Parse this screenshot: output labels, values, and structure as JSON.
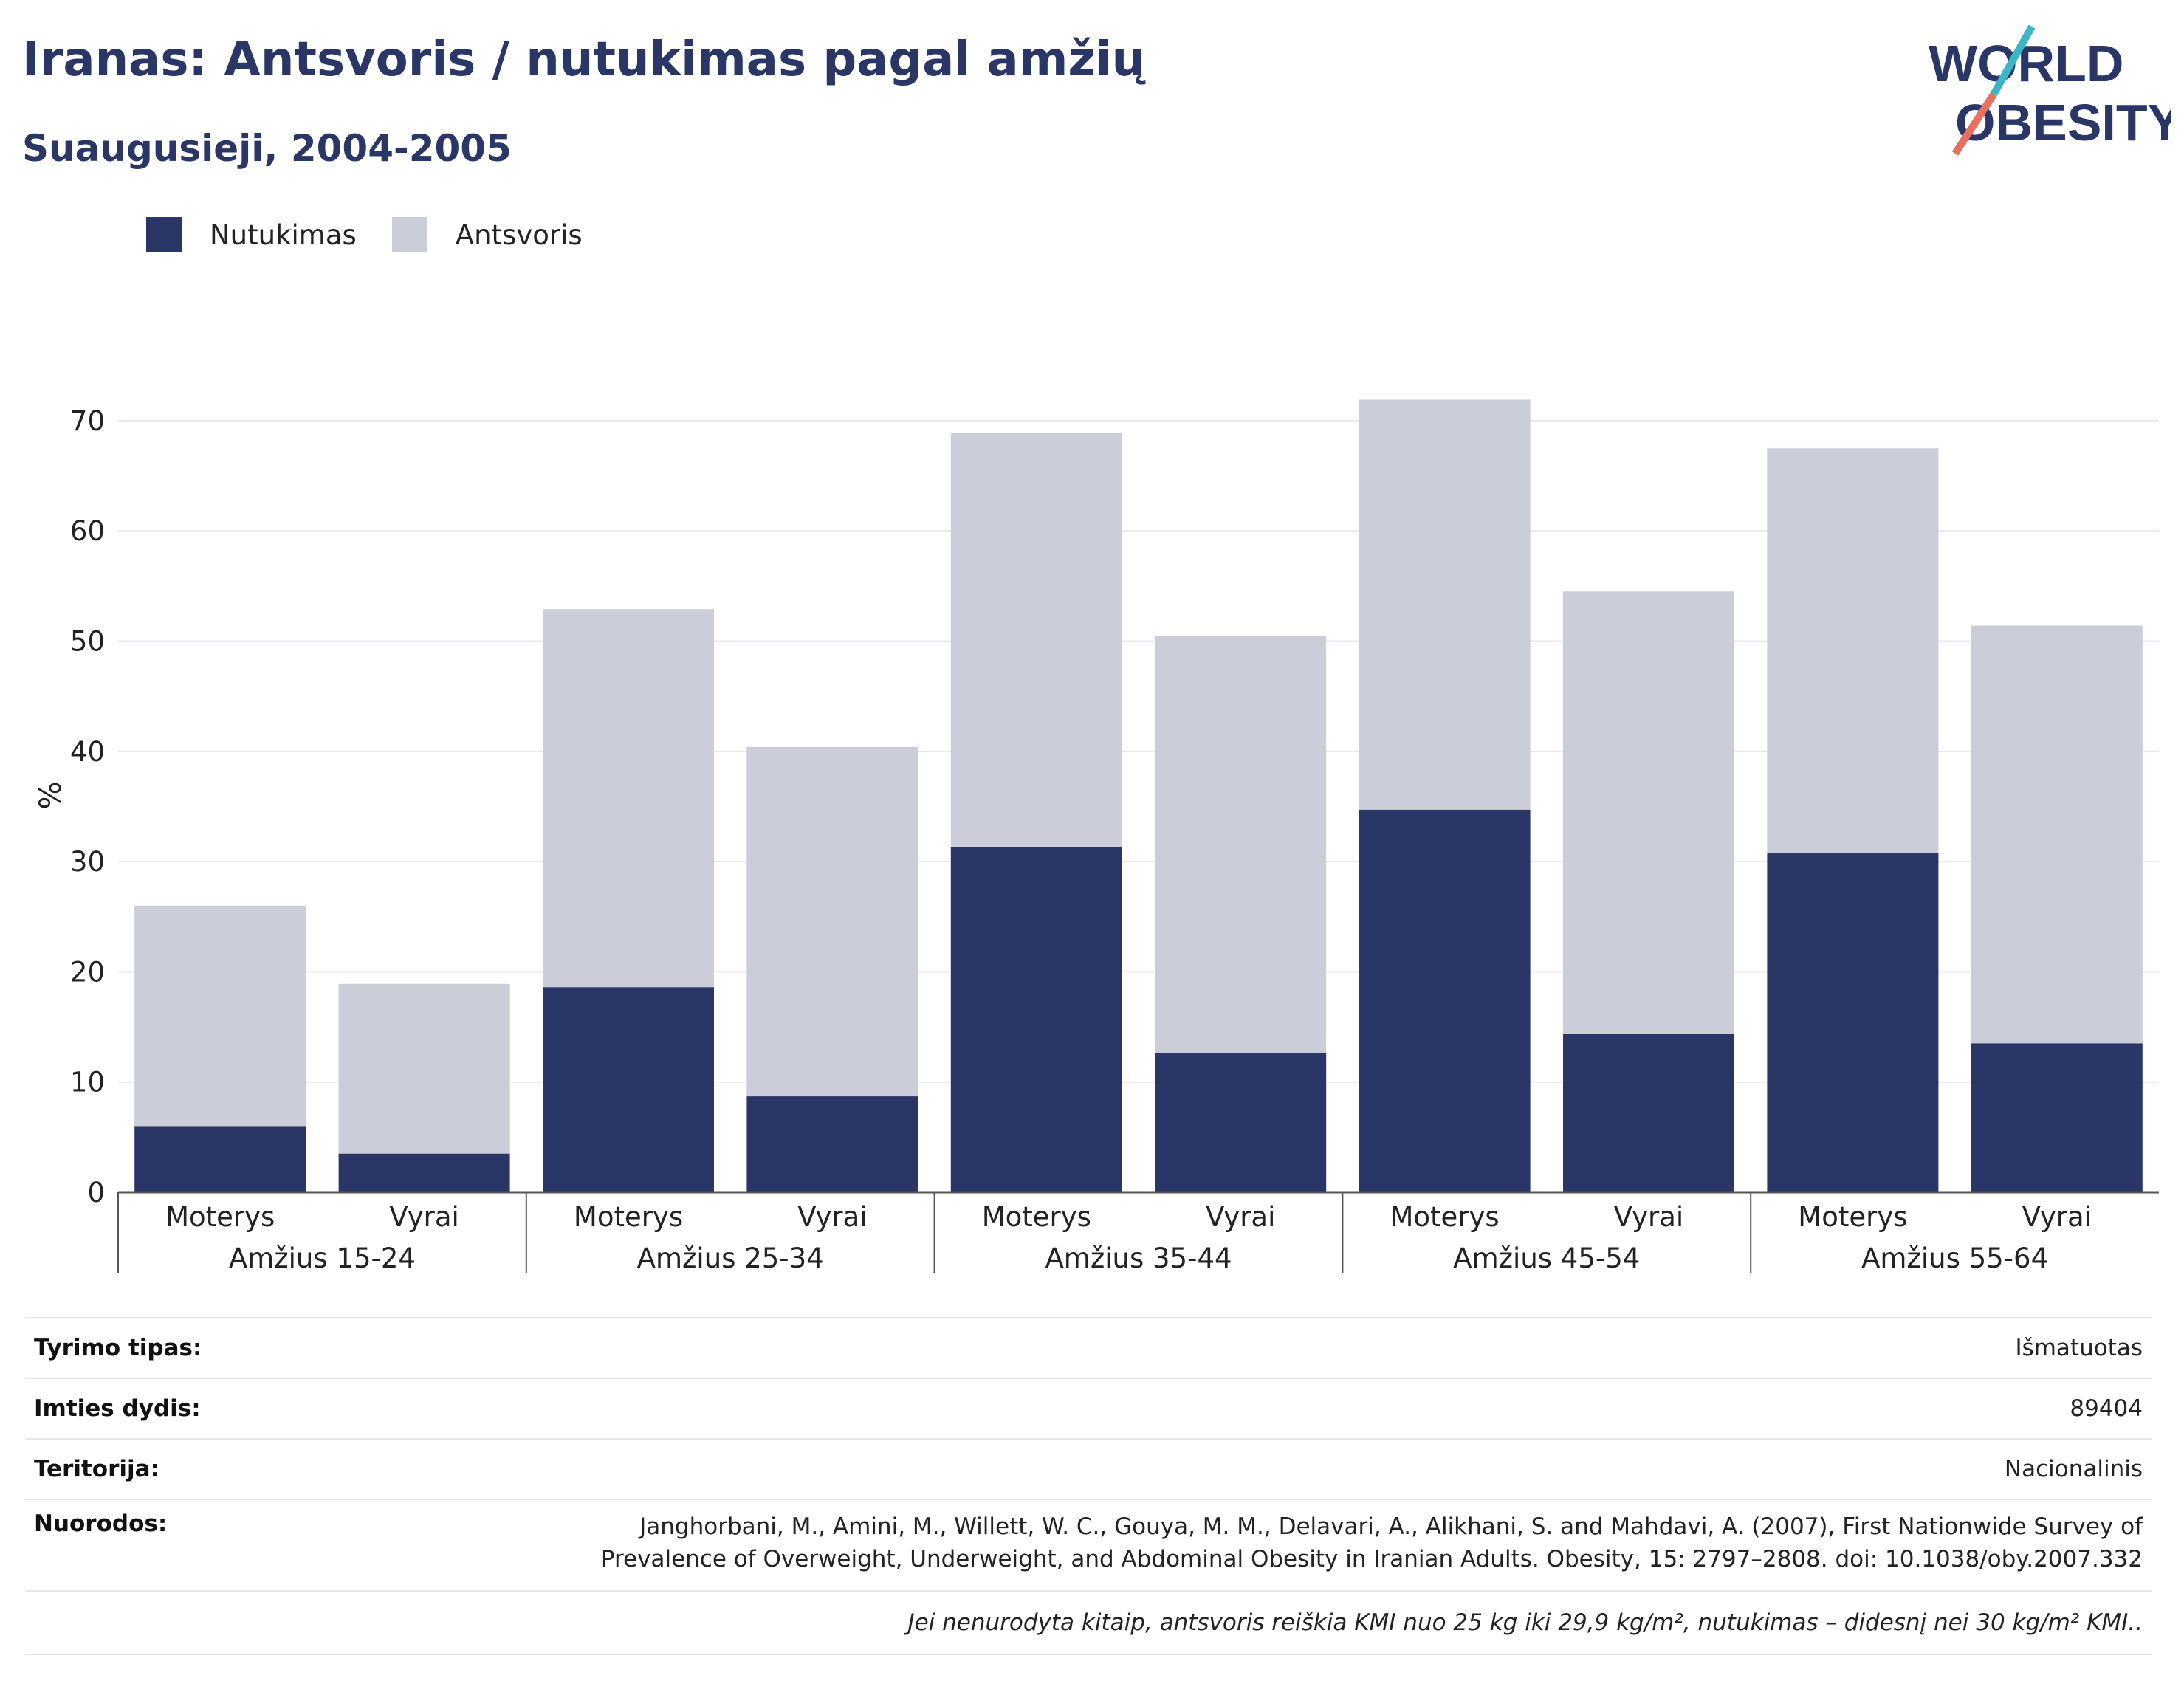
{
  "header": {
    "title": "Iranas: Antsvoris / nutukimas pagal amžių",
    "subtitle": "Suaugusieji, 2004-2005"
  },
  "logo": {
    "line1": "WORLD",
    "line2": "OBESITY",
    "accent_colors": [
      "#3bb6c4",
      "#e8705f"
    ]
  },
  "colors": {
    "obesity": "#2a3766",
    "overweight": "#cbcdd9",
    "text": "#2a3766"
  },
  "chart_data": {
    "type": "bar",
    "stacked": true,
    "ylabel": "%",
    "ylim": [
      0,
      72
    ],
    "yticks": [
      0,
      10,
      20,
      30,
      40,
      50,
      60,
      70
    ],
    "grid": true,
    "legend_position": "top-left",
    "groups": [
      "Amžius 15-24",
      "Amžius 25-34",
      "Amžius 35-44",
      "Amžius 45-54",
      "Amžius 55-64"
    ],
    "subcategories": [
      "Moterys",
      "Vyrai"
    ],
    "series": [
      {
        "name": "Nutukimas",
        "values": [
          6.0,
          3.5,
          18.6,
          8.7,
          31.3,
          12.6,
          34.7,
          14.4,
          30.8,
          13.5
        ]
      },
      {
        "name": "Antsvoris",
        "values": [
          20.0,
          15.4,
          34.3,
          31.7,
          37.6,
          37.9,
          37.2,
          40.1,
          36.7,
          37.9
        ]
      }
    ]
  },
  "info": {
    "rows": [
      {
        "key": "Tyrimo tipas:",
        "value": "Išmatuotas"
      },
      {
        "key": "Imties dydis:",
        "value": "89404"
      },
      {
        "key": "Teritorija:",
        "value": "Nacionalinis"
      },
      {
        "key": "Nuorodos:",
        "value_lines": [
          "Janghorbani, M., Amini, M., Willett, W. C., Gouya, M. M., Delavari, A., Alikhani, S. and Mahdavi, A. (2007), First Nationwide Survey of",
          "Prevalence of Overweight, Underweight, and Abdominal Obesity in Iranian Adults. Obesity, 15: 2797–2808. doi: 10.1038/oby.2007.332"
        ]
      }
    ],
    "note": "Jei nenurodyta kitaip, antsvoris reiškia KMI nuo 25 kg iki 29,9 kg/m², nutukimas – didesnį nei 30 kg/m² KMI.."
  }
}
